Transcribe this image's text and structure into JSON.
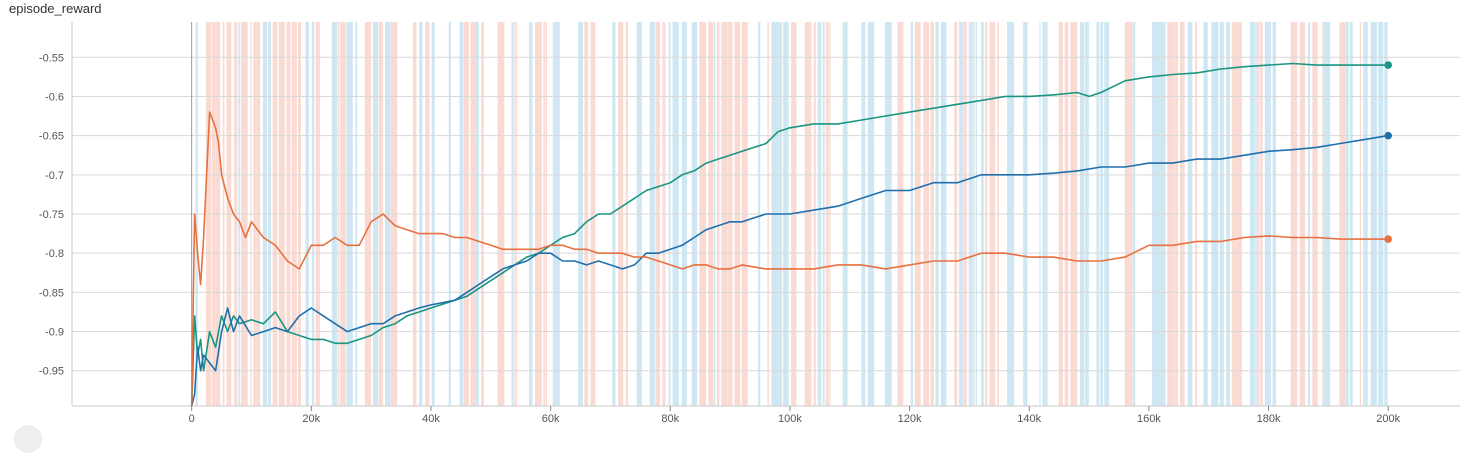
{
  "chart_data": {
    "type": "line",
    "title": "episode_reward",
    "xlabel": "",
    "ylabel": "",
    "xlim": [
      -20000,
      212000
    ],
    "ylim": [
      -0.995,
      -0.505
    ],
    "x_ticks": [
      0,
      20000,
      40000,
      60000,
      80000,
      100000,
      120000,
      140000,
      160000,
      180000,
      200000
    ],
    "x_tick_labels": [
      "0",
      "20k",
      "40k",
      "60k",
      "80k",
      "100k",
      "120k",
      "140k",
      "160k",
      "180k",
      "200k"
    ],
    "y_ticks": [
      -0.55,
      -0.6,
      -0.65,
      -0.7,
      -0.75,
      -0.8,
      -0.85,
      -0.9,
      -0.95
    ],
    "y_tick_labels": [
      "-0.55",
      "-0.6",
      "-0.65",
      "-0.7",
      "-0.75",
      "-0.8",
      "-0.85",
      "-0.9",
      "-0.95"
    ],
    "grid": true,
    "legend": "none",
    "series": [
      {
        "color": "#1a9582",
        "x": [
          0,
          500,
          1000,
          1500,
          2000,
          3000,
          4000,
          5000,
          6000,
          7000,
          8000,
          10000,
          12000,
          14000,
          16000,
          18000,
          20000,
          22000,
          24000,
          26000,
          28000,
          30000,
          32000,
          34000,
          36000,
          38000,
          40000,
          42000,
          44000,
          46000,
          48000,
          50000,
          52000,
          54000,
          56000,
          58000,
          60000,
          62000,
          64000,
          66000,
          68000,
          70000,
          72000,
          74000,
          76000,
          78000,
          80000,
          82000,
          84000,
          86000,
          88000,
          90000,
          92000,
          94000,
          96000,
          98000,
          100000,
          104000,
          108000,
          112000,
          116000,
          120000,
          124000,
          128000,
          132000,
          136000,
          140000,
          144000,
          148000,
          150000,
          152000,
          156000,
          160000,
          164000,
          168000,
          172000,
          176000,
          180000,
          184000,
          188000,
          192000,
          196000,
          200000
        ],
        "y": [
          -1.0,
          -0.88,
          -0.93,
          -0.91,
          -0.95,
          -0.9,
          -0.92,
          -0.88,
          -0.9,
          -0.88,
          -0.89,
          -0.885,
          -0.89,
          -0.875,
          -0.9,
          -0.905,
          -0.91,
          -0.91,
          -0.915,
          -0.915,
          -0.91,
          -0.905,
          -0.895,
          -0.89,
          -0.88,
          -0.875,
          -0.87,
          -0.865,
          -0.86,
          -0.855,
          -0.845,
          -0.835,
          -0.825,
          -0.815,
          -0.805,
          -0.8,
          -0.79,
          -0.78,
          -0.775,
          -0.76,
          -0.75,
          -0.75,
          -0.74,
          -0.73,
          -0.72,
          -0.715,
          -0.71,
          -0.7,
          -0.695,
          -0.685,
          -0.68,
          -0.675,
          -0.67,
          -0.665,
          -0.66,
          -0.645,
          -0.64,
          -0.635,
          -0.635,
          -0.63,
          -0.625,
          -0.62,
          -0.615,
          -0.61,
          -0.605,
          -0.6,
          -0.6,
          -0.598,
          -0.595,
          -0.6,
          -0.595,
          -0.58,
          -0.575,
          -0.572,
          -0.57,
          -0.565,
          -0.562,
          -0.56,
          -0.558,
          -0.56,
          -0.56,
          -0.56,
          -0.56
        ]
      },
      {
        "color": "#1f6fad",
        "x": [
          0,
          500,
          1000,
          1500,
          2000,
          3000,
          4000,
          5000,
          6000,
          7000,
          8000,
          10000,
          12000,
          14000,
          16000,
          18000,
          20000,
          22000,
          24000,
          26000,
          28000,
          30000,
          32000,
          34000,
          36000,
          38000,
          40000,
          42000,
          44000,
          46000,
          48000,
          50000,
          52000,
          54000,
          56000,
          58000,
          60000,
          62000,
          64000,
          66000,
          68000,
          70000,
          72000,
          74000,
          76000,
          78000,
          80000,
          82000,
          84000,
          86000,
          88000,
          90000,
          92000,
          94000,
          96000,
          98000,
          100000,
          104000,
          108000,
          112000,
          116000,
          120000,
          124000,
          128000,
          132000,
          136000,
          140000,
          144000,
          148000,
          152000,
          156000,
          160000,
          164000,
          168000,
          172000,
          176000,
          180000,
          184000,
          188000,
          192000,
          196000,
          200000
        ],
        "y": [
          -1.0,
          -0.98,
          -0.92,
          -0.95,
          -0.93,
          -0.94,
          -0.95,
          -0.9,
          -0.87,
          -0.9,
          -0.88,
          -0.905,
          -0.9,
          -0.895,
          -0.9,
          -0.88,
          -0.87,
          -0.88,
          -0.89,
          -0.9,
          -0.895,
          -0.89,
          -0.89,
          -0.88,
          -0.875,
          -0.87,
          -0.866,
          -0.863,
          -0.86,
          -0.85,
          -0.84,
          -0.83,
          -0.82,
          -0.815,
          -0.81,
          -0.8,
          -0.8,
          -0.81,
          -0.81,
          -0.815,
          -0.81,
          -0.815,
          -0.82,
          -0.815,
          -0.8,
          -0.8,
          -0.795,
          -0.79,
          -0.78,
          -0.77,
          -0.765,
          -0.76,
          -0.76,
          -0.755,
          -0.75,
          -0.75,
          -0.75,
          -0.745,
          -0.74,
          -0.73,
          -0.72,
          -0.72,
          -0.71,
          -0.71,
          -0.7,
          -0.7,
          -0.7,
          -0.698,
          -0.695,
          -0.69,
          -0.69,
          -0.685,
          -0.685,
          -0.68,
          -0.68,
          -0.675,
          -0.67,
          -0.668,
          -0.665,
          -0.66,
          -0.655,
          -0.65
        ]
      },
      {
        "color": "#e8703f",
        "x": [
          0,
          500,
          1000,
          1500,
          2000,
          2500,
          3000,
          3500,
          4000,
          4500,
          5000,
          6000,
          7000,
          8000,
          9000,
          10000,
          12000,
          14000,
          16000,
          18000,
          20000,
          22000,
          24000,
          26000,
          28000,
          30000,
          32000,
          34000,
          36000,
          38000,
          40000,
          42000,
          44000,
          46000,
          48000,
          50000,
          52000,
          54000,
          56000,
          58000,
          60000,
          62000,
          64000,
          66000,
          68000,
          70000,
          72000,
          74000,
          76000,
          78000,
          80000,
          82000,
          84000,
          86000,
          88000,
          90000,
          92000,
          96000,
          100000,
          104000,
          108000,
          112000,
          116000,
          120000,
          124000,
          128000,
          132000,
          136000,
          140000,
          144000,
          148000,
          152000,
          156000,
          160000,
          164000,
          168000,
          172000,
          176000,
          180000,
          184000,
          188000,
          192000,
          196000,
          200000
        ],
        "y": [
          -1.0,
          -0.75,
          -0.8,
          -0.84,
          -0.78,
          -0.7,
          -0.62,
          -0.63,
          -0.64,
          -0.66,
          -0.7,
          -0.73,
          -0.75,
          -0.76,
          -0.78,
          -0.76,
          -0.78,
          -0.79,
          -0.81,
          -0.82,
          -0.79,
          -0.79,
          -0.78,
          -0.79,
          -0.79,
          -0.76,
          -0.75,
          -0.765,
          -0.77,
          -0.775,
          -0.775,
          -0.775,
          -0.78,
          -0.78,
          -0.785,
          -0.79,
          -0.795,
          -0.795,
          -0.795,
          -0.795,
          -0.79,
          -0.79,
          -0.795,
          -0.795,
          -0.8,
          -0.8,
          -0.8,
          -0.805,
          -0.805,
          -0.81,
          -0.815,
          -0.82,
          -0.815,
          -0.815,
          -0.82,
          -0.82,
          -0.815,
          -0.82,
          -0.82,
          -0.82,
          -0.815,
          -0.815,
          -0.82,
          -0.815,
          -0.81,
          -0.81,
          -0.8,
          -0.8,
          -0.805,
          -0.805,
          -0.81,
          -0.81,
          -0.805,
          -0.79,
          -0.79,
          -0.785,
          -0.785,
          -0.78,
          -0.778,
          -0.78,
          -0.78,
          -0.782,
          -0.782,
          -0.782
        ]
      }
    ]
  },
  "controls": {
    "corner_button_icon": "circle-icon"
  }
}
